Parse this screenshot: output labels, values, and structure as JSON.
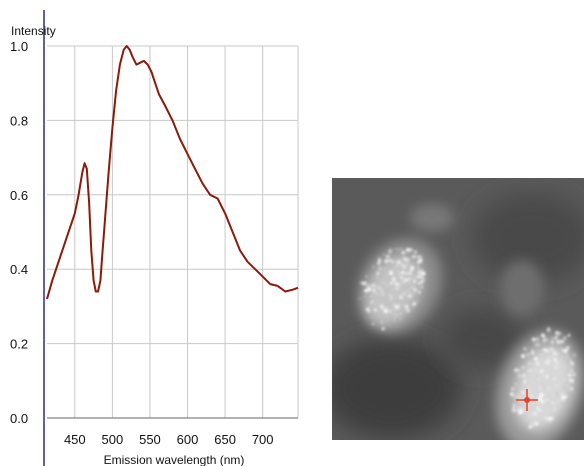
{
  "chart_data": {
    "type": "line",
    "ylabel": "Intensity",
    "xlabel": "Emission wavelength (nm)",
    "xlim": [
      413,
      747
    ],
    "ylim": [
      0,
      1.0
    ],
    "x_ticks": [
      450,
      500,
      550,
      600,
      650,
      700
    ],
    "y_ticks": [
      0.0,
      0.2,
      0.4,
      0.6,
      0.8,
      1.0
    ],
    "y_tick_labels": [
      "0.0",
      "0.2",
      "0.4",
      "0.6",
      "0.8",
      "1.0"
    ],
    "grid": true,
    "line_color": "#8b1a0a",
    "series": [
      {
        "x": [
          413,
          420,
          430,
          440,
          450,
          455,
          460,
          463,
          466,
          469,
          472,
          475,
          478,
          481,
          484,
          487,
          490,
          495,
          500,
          505,
          510,
          515,
          519,
          523,
          527,
          532,
          537,
          542,
          547,
          552,
          557,
          562,
          570,
          580,
          590,
          600,
          610,
          620,
          630,
          640,
          650,
          660,
          670,
          680,
          690,
          700,
          710,
          720,
          730,
          740,
          747
        ],
        "y": [
          0.32,
          0.37,
          0.43,
          0.49,
          0.55,
          0.6,
          0.66,
          0.685,
          0.67,
          0.58,
          0.45,
          0.37,
          0.34,
          0.34,
          0.37,
          0.45,
          0.53,
          0.66,
          0.78,
          0.88,
          0.95,
          0.99,
          1.0,
          0.99,
          0.97,
          0.95,
          0.955,
          0.96,
          0.95,
          0.93,
          0.9,
          0.87,
          0.84,
          0.8,
          0.75,
          0.71,
          0.67,
          0.63,
          0.6,
          0.59,
          0.55,
          0.5,
          0.45,
          0.42,
          0.4,
          0.38,
          0.36,
          0.355,
          0.34,
          0.345,
          0.35
        ]
      }
    ]
  },
  "image": {
    "marker_color": "#e8412a"
  }
}
